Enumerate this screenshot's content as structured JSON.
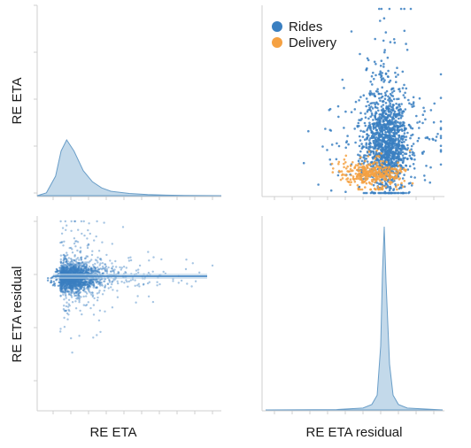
{
  "colors": {
    "rides": "#3a7fc1",
    "delivery": "#f5a142",
    "density_fill": "#b9d2e6",
    "density_line": "#6a9ec8",
    "axis": "#cfcfcf"
  },
  "chart_data": [
    {
      "type": "area",
      "panel": "top-left",
      "title": "",
      "xlabel": "",
      "ylabel": "RE ETA",
      "description_values": {
        "x": [
          0.0,
          0.05,
          0.1,
          0.13,
          0.16,
          0.2,
          0.25,
          0.3,
          0.35,
          0.4,
          0.5,
          0.6,
          0.7,
          0.8,
          1.0
        ],
        "density": [
          0.0,
          0.05,
          0.35,
          0.8,
          1.0,
          0.8,
          0.45,
          0.25,
          0.14,
          0.08,
          0.04,
          0.02,
          0.01,
          0.005,
          0.0
        ]
      },
      "grid": false
    },
    {
      "type": "scatter",
      "panel": "top-right",
      "title": "",
      "xlabel": "",
      "ylabel": "",
      "legend": "top-left",
      "series": [
        {
          "name": "Rides",
          "color_key": "rides"
        },
        {
          "name": "Delivery",
          "color_key": "delivery"
        }
      ],
      "grid": false
    },
    {
      "type": "scatter",
      "panel": "bottom-left",
      "title": "",
      "xlabel": "RE ETA",
      "ylabel": "RE ETA residual",
      "regression_line": {
        "x0": 0.0,
        "x1": 1.0,
        "y": 0.0
      },
      "grid": false
    },
    {
      "type": "area",
      "panel": "bottom-right",
      "title": "",
      "xlabel": "RE ETA residual",
      "ylabel": "",
      "description_values": {
        "x": [
          0.0,
          0.4,
          0.55,
          0.6,
          0.63,
          0.65,
          0.66,
          0.67,
          0.68,
          0.7,
          0.72,
          0.75,
          0.8,
          1.0
        ],
        "density": [
          0.0,
          0.002,
          0.01,
          0.03,
          0.08,
          0.35,
          0.75,
          1.0,
          0.7,
          0.25,
          0.08,
          0.03,
          0.01,
          0.0
        ]
      },
      "grid": false
    }
  ],
  "labels": {
    "top_left_ylabel": "RE ETA",
    "bottom_left_ylabel": "RE ETA residual",
    "bottom_left_xlabel": "RE ETA",
    "bottom_right_xlabel": "RE ETA residual",
    "legend_rides": "Rides",
    "legend_delivery": "Delivery"
  }
}
